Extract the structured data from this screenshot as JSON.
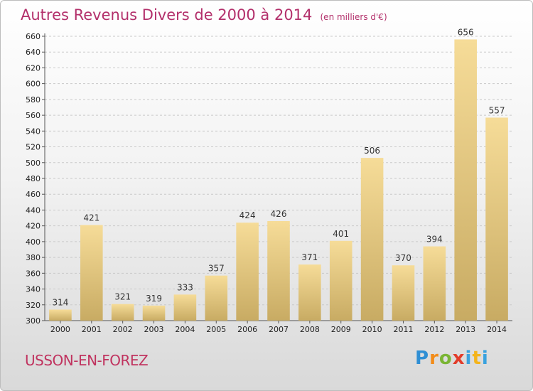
{
  "header": {
    "title": "Autres Revenus Divers de 2000 à 2014",
    "unit": "(en milliers d'€)"
  },
  "footer": {
    "city": "USSON-EN-FOREZ",
    "logo": [
      "P",
      "r",
      "o",
      "x",
      "i",
      "t",
      "i"
    ]
  },
  "colors": {
    "bar_top": "#f6dc98",
    "bar_bottom": "#c8ab63",
    "title": "#b3306b",
    "grid": "#c9c9c9"
  },
  "chart_data": {
    "type": "bar",
    "title": "Autres Revenus Divers de 2000 à 2014",
    "xlabel": "",
    "ylabel": "",
    "categories": [
      "2000",
      "2001",
      "2002",
      "2003",
      "2004",
      "2005",
      "2006",
      "2007",
      "2008",
      "2009",
      "2010",
      "2011",
      "2012",
      "2013",
      "2014"
    ],
    "values": [
      314,
      421,
      321,
      319,
      333,
      357,
      424,
      426,
      371,
      401,
      506,
      370,
      394,
      656,
      557
    ],
    "ylim": [
      300,
      660
    ],
    "ytick_step": 20,
    "grid": true
  }
}
